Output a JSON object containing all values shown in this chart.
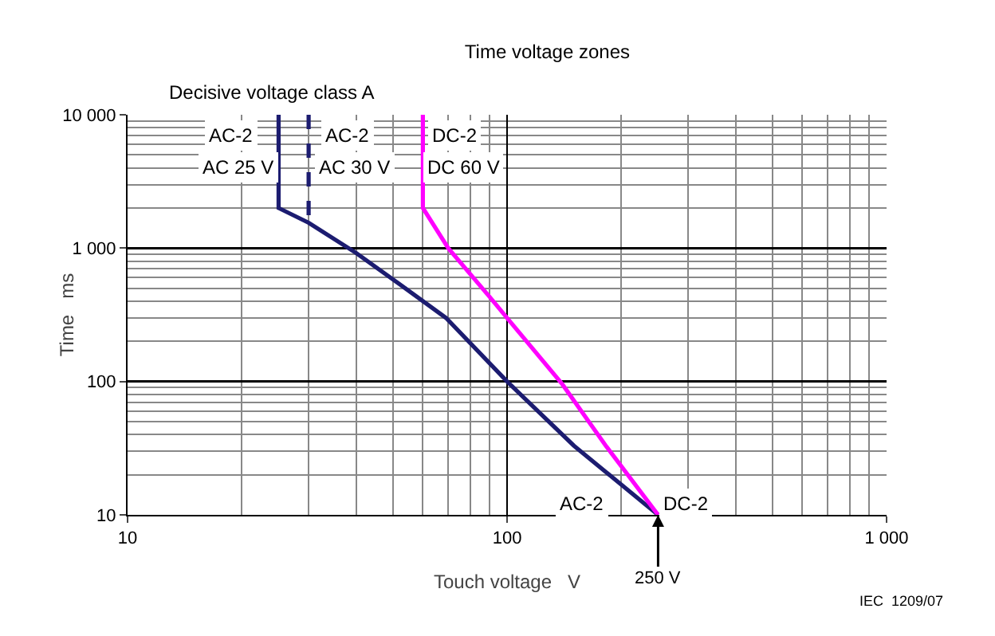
{
  "chart_data": {
    "type": "line",
    "title": "Time voltage zones",
    "subtitle": "Decisive voltage class A",
    "xlabel": "Touch voltage   V",
    "ylabel": "Time   ms",
    "log": "xy",
    "grid": true,
    "marker": "none",
    "xlim": [
      10,
      1000
    ],
    "xticks": [
      10,
      100,
      {
        "value": 1000,
        "label": "1 000"
      }
    ],
    "ylim": [
      10,
      10000
    ],
    "yticks": [
      10,
      100,
      {
        "value": 1000,
        "label": "1 000"
      },
      {
        "value": 10000,
        "label": "10 000"
      }
    ],
    "series": [
      {
        "color": "#1c1c70",
        "line_style": "solid",
        "x": [
          25,
          25,
          30,
          40,
          53,
          69,
          100,
          150,
          250
        ],
        "values": [
          10000,
          2000,
          1550,
          920,
          518,
          300,
          100,
          33,
          10
        ]
      },
      {
        "color": "#1c1c70",
        "line_style": "dashed",
        "x": [
          30,
          30
        ],
        "values": [
          10000,
          1600
        ]
      },
      {
        "color": "#ff00ff",
        "line_style": "solid",
        "x": [
          60,
          60,
          70,
          90,
          102,
          140,
          182,
          250
        ],
        "values": [
          10000,
          2000,
          1000,
          430,
          280,
          95,
          33,
          10
        ]
      }
    ],
    "annotations": [
      {
        "text": "AC-2",
        "x": 18.7,
        "y": 7000
      },
      "AC 25 V",
      {
        "text": "AC-2",
        "x": 38,
        "y": 7000
      },
      "AC 30 V",
      {
        "text": "DC-2",
        "x": 73,
        "y": 7000
      },
      "DC 60 V",
      {
        "text": "AC-2",
        "x": 157,
        "y": 12
      },
      {
        "text": "DC-2",
        "x": 295,
        "y": 12
      },
      {
        "text": "250 V",
        "x": 250,
        "y": 10
      },
      "IEC  1209/07"
    ]
  }
}
